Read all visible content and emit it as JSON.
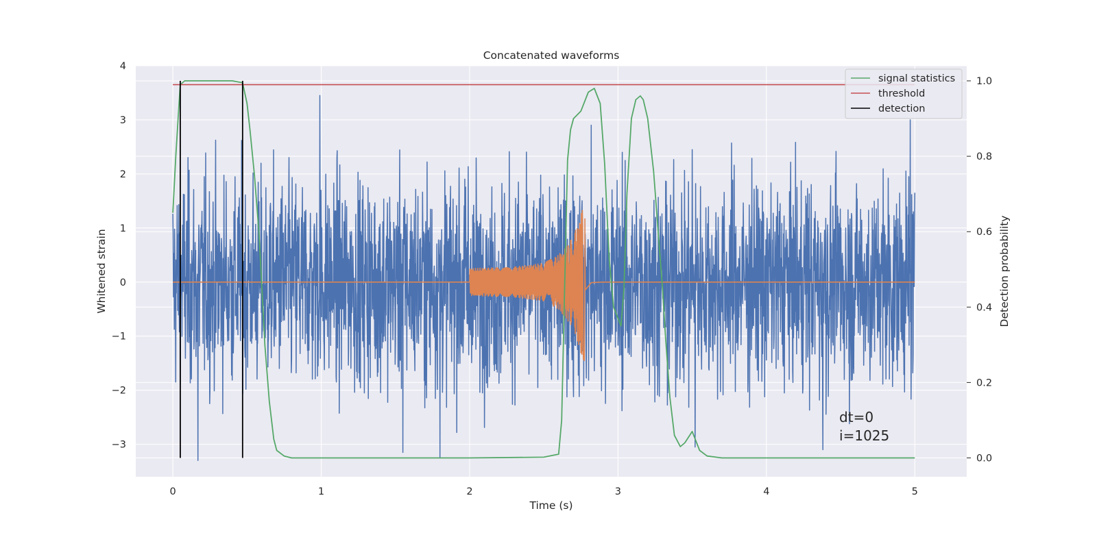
{
  "chart_data": {
    "type": "line",
    "title": "Concatenated waveforms",
    "xlabel": "Time (s)",
    "ylabel_left": "Whitened strain",
    "ylabel_right": "Detection probability",
    "xlim": [
      -0.25,
      5.35
    ],
    "ylim_left": [
      -3.6,
      4.0
    ],
    "ylim_right": [
      -0.05,
      1.04
    ],
    "x_ticks": [
      0,
      1,
      2,
      3,
      4,
      5
    ],
    "x_tick_labels": [
      "0",
      "1",
      "2",
      "3",
      "4",
      "5"
    ],
    "y_left_ticks": [
      -3,
      -2,
      -1,
      0,
      1,
      2,
      3,
      4
    ],
    "y_left_tick_labels": [
      "−3",
      "−2",
      "−1",
      "0",
      "1",
      "2",
      "3",
      "4"
    ],
    "y_right_ticks": [
      0.0,
      0.2,
      0.4,
      0.6,
      0.8,
      1.0
    ],
    "y_right_tick_labels": [
      "0.0",
      "0.2",
      "0.4",
      "0.6",
      "0.8",
      "1.0"
    ],
    "grid": true,
    "legend_position": "top-right",
    "series": [
      {
        "name": "",
        "axis": "left",
        "kind": "noise",
        "color": "#4c72b0",
        "x_range": [
          0,
          5
        ],
        "typical_range": [
          -1.7,
          1.7
        ],
        "peaks": [
          {
            "x": 0.17,
            "y": -3.3
          },
          {
            "x": 0.99,
            "y": 3.45
          },
          {
            "x": 1.55,
            "y": -3.15
          },
          {
            "x": 1.8,
            "y": -3.25
          },
          {
            "x": 2.82,
            "y": 2.9
          },
          {
            "x": 3.5,
            "y": 2.45
          },
          {
            "x": 3.52,
            "y": -3.05
          },
          {
            "x": 4.38,
            "y": -3.1
          },
          {
            "x": 4.97,
            "y": 3.0
          }
        ]
      },
      {
        "name": "",
        "axis": "left",
        "kind": "chirp",
        "color": "#dd8452",
        "x_range": [
          0,
          5
        ],
        "chirp_start": 2.0,
        "merger": 2.78,
        "envelope": [
          {
            "x": 2.0,
            "a": 0.25
          },
          {
            "x": 2.3,
            "a": 0.28
          },
          {
            "x": 2.5,
            "a": 0.35
          },
          {
            "x": 2.6,
            "a": 0.5
          },
          {
            "x": 2.7,
            "a": 0.85
          },
          {
            "x": 2.76,
            "a": 1.4
          },
          {
            "x": 2.78,
            "a": 1.5
          },
          {
            "x": 2.82,
            "a": 0.1
          },
          {
            "x": 2.9,
            "a": 0.0
          }
        ]
      },
      {
        "name": "signal statistics",
        "axis": "right",
        "color": "#55a868",
        "x": [
          0.0,
          0.02,
          0.04,
          0.05,
          0.08,
          0.12,
          0.2,
          0.3,
          0.4,
          0.47,
          0.5,
          0.52,
          0.55,
          0.58,
          0.6,
          0.62,
          0.65,
          0.68,
          0.7,
          0.75,
          0.8,
          1.0,
          1.5,
          2.0,
          2.5,
          2.6,
          2.62,
          2.64,
          2.66,
          2.68,
          2.7,
          2.75,
          2.8,
          2.84,
          2.88,
          2.91,
          2.94,
          2.97,
          3.0,
          3.02,
          3.04,
          3.06,
          3.09,
          3.12,
          3.15,
          3.17,
          3.2,
          3.24,
          3.28,
          3.3,
          3.32,
          3.35,
          3.38,
          3.42,
          3.45,
          3.5,
          3.55,
          3.6,
          3.7,
          4.0,
          4.5,
          5.0
        ],
        "y": [
          0.65,
          0.8,
          0.93,
          0.99,
          1.0,
          1.0,
          1.0,
          1.0,
          1.0,
          0.995,
          0.94,
          0.87,
          0.75,
          0.6,
          0.45,
          0.3,
          0.15,
          0.05,
          0.02,
          0.005,
          0.0,
          0.0,
          0.0,
          0.0,
          0.002,
          0.01,
          0.1,
          0.45,
          0.79,
          0.87,
          0.9,
          0.92,
          0.97,
          0.98,
          0.94,
          0.78,
          0.53,
          0.4,
          0.37,
          0.35,
          0.45,
          0.7,
          0.9,
          0.95,
          0.96,
          0.95,
          0.9,
          0.76,
          0.55,
          0.45,
          0.32,
          0.16,
          0.06,
          0.03,
          0.04,
          0.07,
          0.02,
          0.005,
          0.0,
          0.0,
          0.0,
          0.0
        ]
      },
      {
        "name": "threshold",
        "axis": "right",
        "color": "#c44e52",
        "x": [
          0,
          5
        ],
        "y": [
          0.99,
          0.99
        ]
      },
      {
        "name": "detection",
        "axis": "right",
        "color": "#000000",
        "vlines": [
          0.05,
          0.47
        ],
        "ymin": 0.0,
        "ymax": 1.0
      }
    ],
    "annotation": {
      "x": 4.5,
      "lines": [
        "dt=0",
        "i=1025"
      ]
    }
  }
}
